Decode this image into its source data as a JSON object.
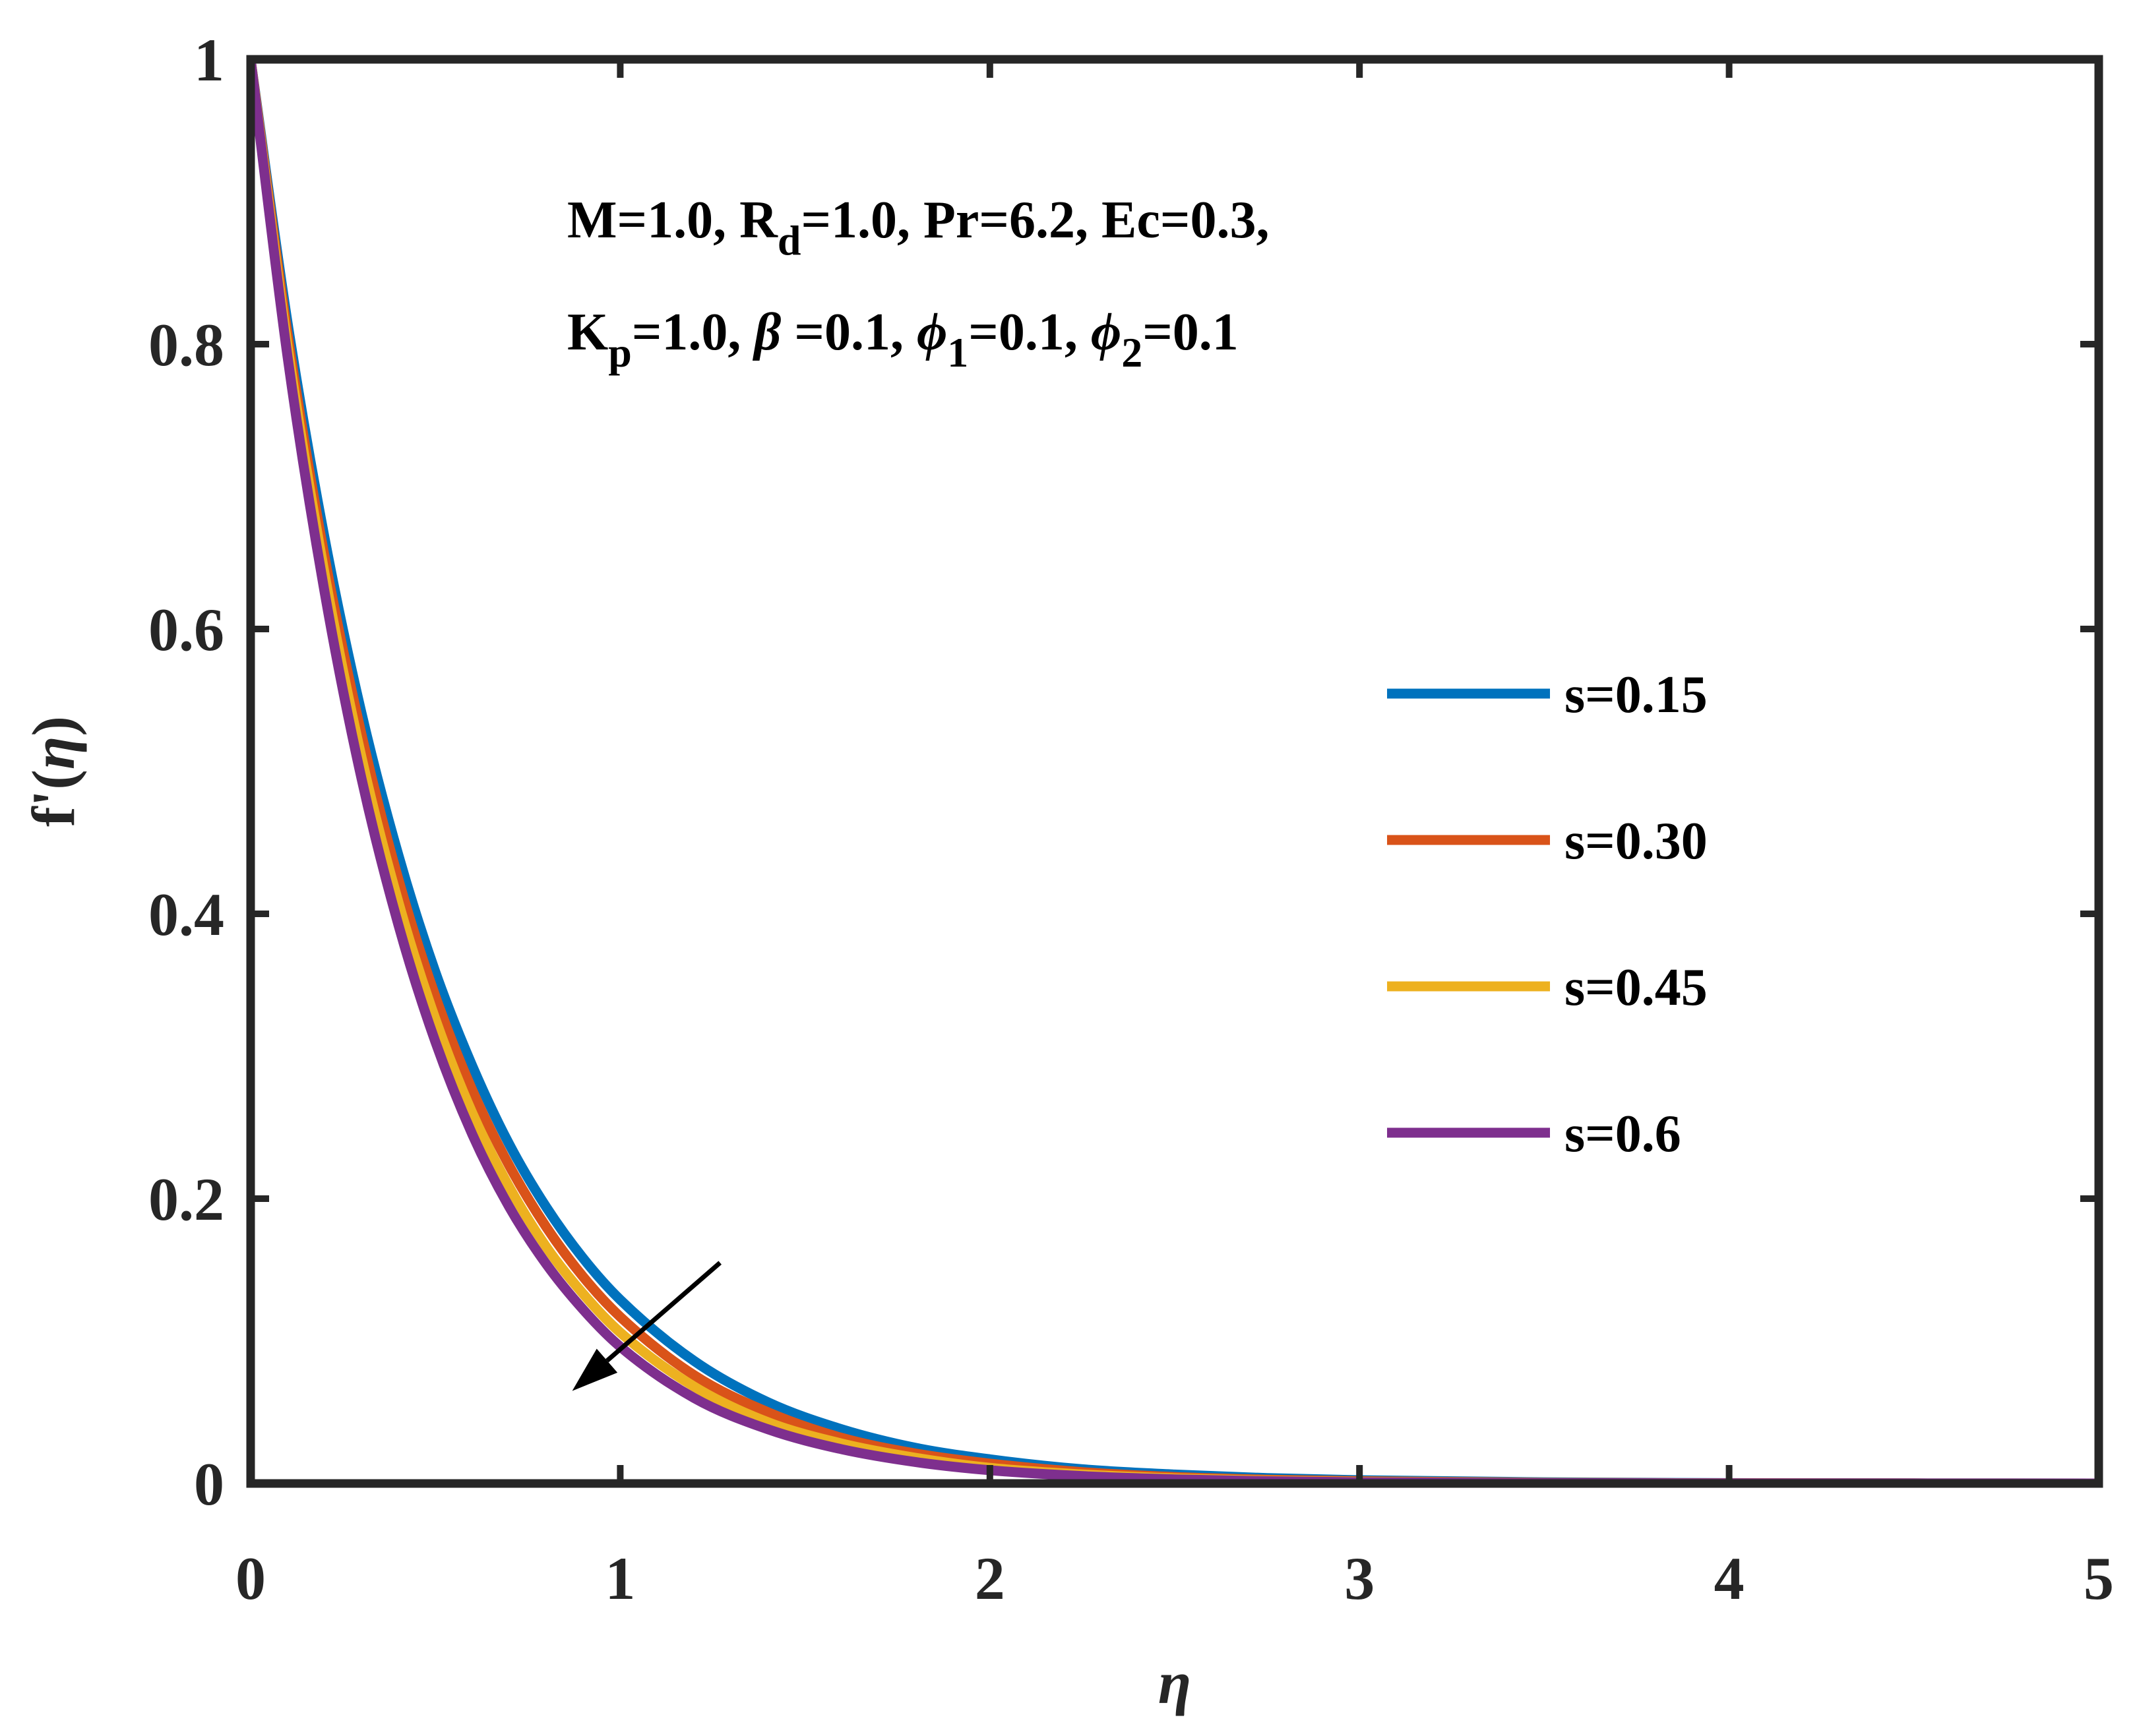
{
  "chart_data": {
    "type": "line",
    "xlabel": "η",
    "ylabel_prefix": "f'(",
    "ylabel_var": "η",
    "ylabel_suffix": ")",
    "xlim": [
      0,
      5
    ],
    "ylim": [
      0,
      1
    ],
    "xticks": [
      "0",
      "1",
      "2",
      "3",
      "4",
      "5"
    ],
    "yticks": [
      "0",
      "0.2",
      "0.4",
      "0.6",
      "0.8",
      "1"
    ],
    "grid": false,
    "legend_position": "right",
    "annotation": {
      "line1": [
        {
          "t": "M=1.0, R"
        },
        {
          "t": "d",
          "sub": true
        },
        {
          "t": "=1.0, Pr=6.2, Ec=0.3,"
        }
      ],
      "line2": [
        {
          "t": "K"
        },
        {
          "t": "p",
          "sub": true
        },
        {
          "t": "=1.0, "
        },
        {
          "t": "β",
          "it": true
        },
        {
          "t": " =0.1, "
        },
        {
          "t": "ϕ",
          "it": true
        },
        {
          "t": "1",
          "sub": true
        },
        {
          "t": "=0.1, "
        },
        {
          "t": "ϕ",
          "it": true
        },
        {
          "t": "2",
          "sub": true
        },
        {
          "t": "=0.1"
        }
      ]
    },
    "arrow": {
      "from": [
        1.27,
        0.155
      ],
      "to": [
        0.87,
        0.065
      ]
    },
    "x": [
      0,
      0.1,
      0.2,
      0.3,
      0.4,
      0.5,
      0.6,
      0.7,
      0.8,
      0.9,
      1.0,
      1.2,
      1.4,
      1.6,
      1.8,
      2.0,
      2.25,
      2.5,
      2.75,
      3.0,
      3.5,
      4.0,
      4.5,
      5.0
    ],
    "series": [
      {
        "name": "s=0.15",
        "color": "#0072BD",
        "values": [
          1,
          0.815,
          0.664,
          0.541,
          0.441,
          0.359,
          0.293,
          0.238,
          0.194,
          0.158,
          0.129,
          0.086,
          0.057,
          0.038,
          0.025,
          0.017,
          0.01,
          0.0063,
          0.0038,
          0.0023,
          0.0009,
          0.0003,
          0.0001,
          0
        ]
      },
      {
        "name": "s=0.30",
        "color": "#D95319",
        "values": [
          1,
          0.807,
          0.651,
          0.526,
          0.424,
          0.342,
          0.276,
          0.223,
          0.18,
          0.145,
          0.117,
          0.076,
          0.05,
          0.032,
          0.021,
          0.014,
          0.008,
          0.0046,
          0.0027,
          0.0016,
          0.0005,
          0.0002,
          0.0001,
          0
        ]
      },
      {
        "name": "s=0.45",
        "color": "#EDB120",
        "values": [
          1,
          0.799,
          0.639,
          0.51,
          0.408,
          0.326,
          0.26,
          0.208,
          0.166,
          0.133,
          0.106,
          0.068,
          0.043,
          0.028,
          0.018,
          0.011,
          0.0064,
          0.0036,
          0.002,
          0.0011,
          0.0004,
          0.0001,
          0,
          0
        ]
      },
      {
        "name": "s=0.6",
        "color": "#7E2F8E",
        "values": [
          1,
          0.791,
          0.626,
          0.495,
          0.392,
          0.31,
          0.245,
          0.194,
          0.154,
          0.122,
          0.096,
          0.06,
          0.038,
          0.024,
          0.015,
          0.0093,
          0.0052,
          0.0029,
          0.0016,
          0.0009,
          0.0003,
          0.0001,
          0,
          0
        ]
      }
    ]
  }
}
